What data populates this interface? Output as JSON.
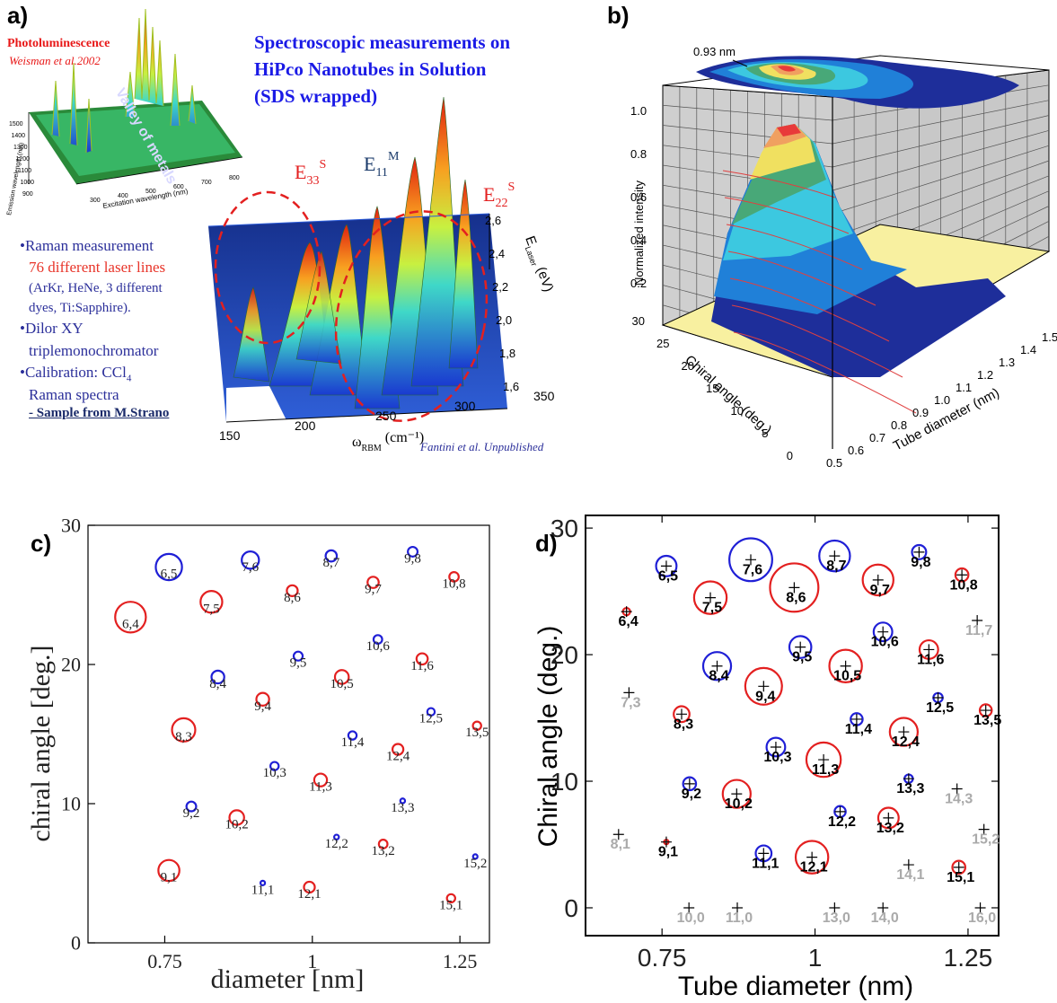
{
  "panel_labels": {
    "a": "a)",
    "b": "b)",
    "c": "c)",
    "d": "d)"
  },
  "panel_a": {
    "title_lines": [
      "Spectroscopic measurements on",
      "HiPco Nanotubes in Solution",
      "(SDS wrapped)"
    ],
    "inset_title": "Photoluminescence",
    "inset_ref": "Weisman et al.2002",
    "inset_ylabel": "Emission wavelength (nm)",
    "inset_xlabel": "Excitation wavelength (nm)",
    "inset_yticks": [
      "1500",
      "1400",
      "1300",
      "1200",
      "1100",
      "1000",
      "900"
    ],
    "inset_xticks": [
      "300",
      "400",
      "500",
      "600",
      "700",
      "800"
    ],
    "valley_label": "Valley of metals",
    "peak_labels": {
      "e33": "E",
      "e33_sub": "33",
      "e33_sup": "S",
      "e11": "E",
      "e11_sub": "11",
      "e11_sup": "M",
      "e22": "E",
      "e22_sub": "22",
      "e22_sup": "S"
    },
    "info": {
      "raman": "•Raman measurement",
      "lasers": "76 different laser lines",
      "lasers_detail_1": "(ArKr, HeNe, 3 different",
      "lasers_detail_2": "dyes, Ti:Sapphire).",
      "dilor_1": "•Dilor XY",
      "dilor_2": "triplemonochromator",
      "calib_1": "•Calibration: CCl",
      "calib_sub": "4",
      "calib_2": "Raman spectra",
      "sample": "- Sample from M.Strano"
    },
    "xaxis_label": "ω",
    "xaxis_sub": "RBM",
    "xaxis_unit": "(cm⁻¹)",
    "xticks": [
      "150",
      "200",
      "250",
      "300",
      "350"
    ],
    "eaxis_label": "E",
    "eaxis_sub": "Laser",
    "eaxis_unit": "(eV)",
    "eticks": [
      "2,6",
      "2,4",
      "2,2",
      "2,0",
      "1,8",
      "1,6"
    ],
    "credit": "Fantini et al. Unpublished"
  },
  "panel_b": {
    "annotation": "0.93 nm",
    "zlabel": "Normalized intensity",
    "zticks": [
      "1.0",
      "0.8",
      "0.6",
      "0.4",
      "0.2"
    ],
    "ylabel": "Chiral angle (deg.)",
    "yticks": [
      "30",
      "25",
      "20",
      "15",
      "10",
      "5",
      "0"
    ],
    "xlabel": "Tube diameter (nm)",
    "xticks": [
      "0.5",
      "0.6",
      "0.7",
      "0.8",
      "0.9",
      "1.0",
      "1.1",
      "1.2",
      "1.3",
      "1.4",
      "1.5"
    ]
  },
  "colors": {
    "red": "#e32020",
    "blue": "#1f1fd6",
    "gray": "#aaaaaa",
    "title_blue": "#1a1ae6",
    "info_blue": "#2b2f9a",
    "info_red": "#e8352a"
  },
  "chart_data": [
    {
      "type": "scatter",
      "panel": "c",
      "xlabel": "diameter [nm]",
      "ylabel": "chiral angle [deg.]",
      "xlim": [
        0.62,
        1.3
      ],
      "ylim": [
        0,
        30
      ],
      "xticks": [
        0.75,
        1,
        1.25
      ],
      "xtick_labels": [
        "0.75",
        "1",
        "1.25"
      ],
      "yticks": [
        0,
        10,
        20,
        30
      ],
      "points": [
        {
          "label": "6,5",
          "x": 0.757,
          "y": 27.0,
          "r": 0.0222,
          "color": "blue"
        },
        {
          "label": "7,6",
          "x": 0.895,
          "y": 27.5,
          "r": 0.0146,
          "color": "blue"
        },
        {
          "label": "8,7",
          "x": 1.032,
          "y": 27.8,
          "r": 0.0095,
          "color": "blue"
        },
        {
          "label": "9,8",
          "x": 1.17,
          "y": 28.1,
          "r": 0.0082,
          "color": "blue"
        },
        {
          "label": "6,4",
          "x": 0.692,
          "y": 23.4,
          "r": 0.026,
          "color": "red"
        },
        {
          "label": "7,5",
          "x": 0.829,
          "y": 24.5,
          "r": 0.0184,
          "color": "red"
        },
        {
          "label": "8,6",
          "x": 0.966,
          "y": 25.3,
          "r": 0.0092,
          "color": "red"
        },
        {
          "label": "9,7",
          "x": 1.103,
          "y": 25.9,
          "r": 0.0095,
          "color": "red"
        },
        {
          "label": "10,8",
          "x": 1.24,
          "y": 26.3,
          "r": 0.008,
          "color": "red"
        },
        {
          "label": "8,4",
          "x": 0.84,
          "y": 19.1,
          "r": 0.0108,
          "color": "blue"
        },
        {
          "label": "9,5",
          "x": 0.976,
          "y": 20.6,
          "r": 0.0076,
          "color": "blue"
        },
        {
          "label": "10,6",
          "x": 1.111,
          "y": 21.8,
          "r": 0.0073,
          "color": "blue"
        },
        {
          "label": "9,4",
          "x": 0.916,
          "y": 17.5,
          "r": 0.0108,
          "color": "red"
        },
        {
          "label": "10,5",
          "x": 1.05,
          "y": 19.1,
          "r": 0.0117,
          "color": "red"
        },
        {
          "label": "11,6",
          "x": 1.186,
          "y": 20.4,
          "r": 0.0095,
          "color": "red"
        },
        {
          "label": "8,3",
          "x": 0.782,
          "y": 15.3,
          "r": 0.0197,
          "color": "red"
        },
        {
          "label": "11,4",
          "x": 1.068,
          "y": 14.9,
          "r": 0.007,
          "color": "blue"
        },
        {
          "label": "12,5",
          "x": 1.201,
          "y": 16.6,
          "r": 0.0063,
          "color": "blue"
        },
        {
          "label": "12,4",
          "x": 1.145,
          "y": 13.9,
          "r": 0.0092,
          "color": "red"
        },
        {
          "label": "13,5",
          "x": 1.279,
          "y": 15.6,
          "r": 0.007,
          "color": "red"
        },
        {
          "label": "10,3",
          "x": 0.936,
          "y": 12.7,
          "r": 0.007,
          "color": "blue"
        },
        {
          "label": "11,3",
          "x": 1.014,
          "y": 11.7,
          "r": 0.0108,
          "color": "red"
        },
        {
          "label": "9,2",
          "x": 0.795,
          "y": 9.8,
          "r": 0.0082,
          "color": "blue"
        },
        {
          "label": "10,2",
          "x": 0.872,
          "y": 9.0,
          "r": 0.0124,
          "color": "red"
        },
        {
          "label": "13,3",
          "x": 1.153,
          "y": 10.2,
          "r": 0.004,
          "color": "blue"
        },
        {
          "label": "12,2",
          "x": 1.041,
          "y": 7.6,
          "r": 0.004,
          "color": "blue"
        },
        {
          "label": "13,2",
          "x": 1.12,
          "y": 7.1,
          "r": 0.0073,
          "color": "red"
        },
        {
          "label": "15,2",
          "x": 1.276,
          "y": 6.2,
          "r": 0.0022,
          "color": "blue"
        },
        {
          "label": "9,1",
          "x": 0.757,
          "y": 5.2,
          "r": 0.0178,
          "color": "red"
        },
        {
          "label": "11,1",
          "x": 0.916,
          "y": 4.3,
          "r": 0.0035,
          "color": "blue"
        },
        {
          "label": "12,1",
          "x": 0.995,
          "y": 4.0,
          "r": 0.0092,
          "color": "red"
        },
        {
          "label": "15,1",
          "x": 1.235,
          "y": 3.2,
          "r": 0.007,
          "color": "red"
        }
      ]
    },
    {
      "type": "scatter",
      "panel": "d",
      "xlabel": "Tube diameter (nm)",
      "ylabel": "Chiral angle (deg.)",
      "xlim": [
        0.625,
        1.3
      ],
      "ylim": [
        -2.2,
        31
      ],
      "xticks": [
        0.75,
        1,
        1.25
      ],
      "xtick_labels": [
        "0.75",
        "1",
        "1.25"
      ],
      "yticks": [
        0,
        10,
        20,
        30
      ],
      "points": [
        {
          "label": "6,5",
          "x": 0.757,
          "y": 27.0,
          "r": 0.0167,
          "color": "blue"
        },
        {
          "label": "7,6",
          "x": 0.895,
          "y": 27.5,
          "r": 0.035,
          "color": "blue"
        },
        {
          "label": "8,7",
          "x": 1.032,
          "y": 27.8,
          "r": 0.0251,
          "color": "blue"
        },
        {
          "label": "9,8",
          "x": 1.17,
          "y": 28.1,
          "r": 0.0116,
          "color": "blue"
        },
        {
          "label": "6,4",
          "x": 0.692,
          "y": 23.4,
          "r": 0.006,
          "color": "red"
        },
        {
          "label": "7,5",
          "x": 0.829,
          "y": 24.5,
          "r": 0.0266,
          "color": "red"
        },
        {
          "label": "8,6",
          "x": 0.966,
          "y": 25.3,
          "r": 0.0395,
          "color": "red"
        },
        {
          "label": "9,7",
          "x": 1.103,
          "y": 25.9,
          "r": 0.0251,
          "color": "red"
        },
        {
          "label": "10,8",
          "x": 1.24,
          "y": 26.3,
          "r": 0.0106,
          "color": "red"
        },
        {
          "label": "11,7",
          "x": 1.265,
          "y": 22.7,
          "r": 0,
          "color": "gray"
        },
        {
          "label": "8,4",
          "x": 0.84,
          "y": 19.1,
          "r": 0.0228,
          "color": "blue"
        },
        {
          "label": "9,5",
          "x": 0.976,
          "y": 20.6,
          "r": 0.0179,
          "color": "blue"
        },
        {
          "label": "10,6",
          "x": 1.111,
          "y": 21.8,
          "r": 0.0152,
          "color": "blue"
        },
        {
          "label": "9,4",
          "x": 0.916,
          "y": 17.5,
          "r": 0.03,
          "color": "red"
        },
        {
          "label": "10,5",
          "x": 1.05,
          "y": 19.1,
          "r": 0.0266,
          "color": "red"
        },
        {
          "label": "11,6",
          "x": 1.186,
          "y": 20.4,
          "r": 0.0152,
          "color": "red"
        },
        {
          "label": "7,3",
          "x": 0.696,
          "y": 17.0,
          "r": 0,
          "color": "gray"
        },
        {
          "label": "8,3",
          "x": 0.782,
          "y": 15.3,
          "r": 0.0129,
          "color": "red"
        },
        {
          "label": "11,4",
          "x": 1.068,
          "y": 14.9,
          "r": 0.0098,
          "color": "blue"
        },
        {
          "label": "12,5",
          "x": 1.201,
          "y": 16.6,
          "r": 0.0076,
          "color": "blue"
        },
        {
          "label": "12,4",
          "x": 1.145,
          "y": 13.9,
          "r": 0.0228,
          "color": "red"
        },
        {
          "label": "13,5",
          "x": 1.279,
          "y": 15.6,
          "r": 0.0098,
          "color": "red"
        },
        {
          "label": "10,3",
          "x": 0.936,
          "y": 12.7,
          "r": 0.0152,
          "color": "blue"
        },
        {
          "label": "11,3",
          "x": 1.014,
          "y": 11.7,
          "r": 0.0281,
          "color": "red"
        },
        {
          "label": "9,2",
          "x": 0.795,
          "y": 9.8,
          "r": 0.0106,
          "color": "blue"
        },
        {
          "label": "10,2",
          "x": 0.872,
          "y": 9.0,
          "r": 0.0228,
          "color": "red"
        },
        {
          "label": "13,3",
          "x": 1.153,
          "y": 10.2,
          "r": 0.0068,
          "color": "blue"
        },
        {
          "label": "14,3",
          "x": 1.232,
          "y": 9.4,
          "r": 0,
          "color": "gray"
        },
        {
          "label": "12,2",
          "x": 1.041,
          "y": 7.6,
          "r": 0.0091,
          "color": "blue"
        },
        {
          "label": "13,2",
          "x": 1.12,
          "y": 7.1,
          "r": 0.0167,
          "color": "red"
        },
        {
          "label": "8,1",
          "x": 0.679,
          "y": 5.8,
          "r": 0,
          "color": "gray"
        },
        {
          "label": "9,1",
          "x": 0.757,
          "y": 5.2,
          "r": 0.003,
          "color": "red"
        },
        {
          "label": "15,2",
          "x": 1.276,
          "y": 6.2,
          "r": 0,
          "color": "gray"
        },
        {
          "label": "11,1",
          "x": 0.916,
          "y": 4.3,
          "r": 0.0129,
          "color": "blue"
        },
        {
          "label": "12,1",
          "x": 0.995,
          "y": 4.0,
          "r": 0.0266,
          "color": "red"
        },
        {
          "label": "14,1",
          "x": 1.153,
          "y": 3.4,
          "r": 0,
          "color": "gray"
        },
        {
          "label": "15,1",
          "x": 1.235,
          "y": 3.2,
          "r": 0.0106,
          "color": "red"
        },
        {
          "label": "10,0",
          "x": 0.794,
          "y": 0,
          "r": 0,
          "color": "gray"
        },
        {
          "label": "11,0",
          "x": 0.873,
          "y": 0,
          "r": 0,
          "color": "gray"
        },
        {
          "label": "13,0",
          "x": 1.032,
          "y": 0,
          "r": 0,
          "color": "gray"
        },
        {
          "label": "14,0",
          "x": 1.111,
          "y": 0,
          "r": 0,
          "color": "gray"
        },
        {
          "label": "16,0",
          "x": 1.27,
          "y": 0,
          "r": 0,
          "color": "gray"
        }
      ]
    }
  ]
}
